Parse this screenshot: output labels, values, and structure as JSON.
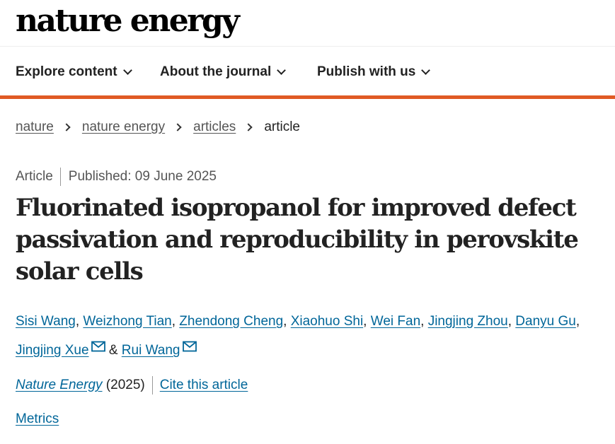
{
  "site": {
    "logo_text": "nature energy"
  },
  "nav": {
    "items": [
      {
        "label": "Explore content"
      },
      {
        "label": "About the journal"
      },
      {
        "label": "Publish with us"
      }
    ]
  },
  "colors": {
    "accent": "#e05a24",
    "link": "#006699",
    "text": "#222222",
    "muted": "#555555"
  },
  "breadcrumb": {
    "items": [
      {
        "label": "nature"
      },
      {
        "label": "nature energy"
      },
      {
        "label": "articles"
      }
    ],
    "current": "article"
  },
  "article": {
    "type": "Article",
    "published": "Published: 09 June 2025",
    "title": "Fluorinated isopropanol for improved defect passivation and reproducibility in perovskite solar cells",
    "authors": [
      "Sisi Wang",
      "Weizhong Tian",
      "Zhendong Cheng",
      "Xiaohuo Shi",
      "Wei Fan",
      "Jingjing Zhou",
      "Danyu Gu",
      "Jingjing Xue",
      "Rui Wang"
    ],
    "author_separator": ",",
    "author_and": "&",
    "journal": "Nature Energy",
    "year": "(2025)",
    "cite_label": "Cite this article",
    "metrics_label": "Metrics"
  },
  "icons": {
    "corresponding_author": "mail-icon",
    "dropdown": "chevron-down-icon",
    "breadcrumb_separator": "chevron-right-icon"
  }
}
